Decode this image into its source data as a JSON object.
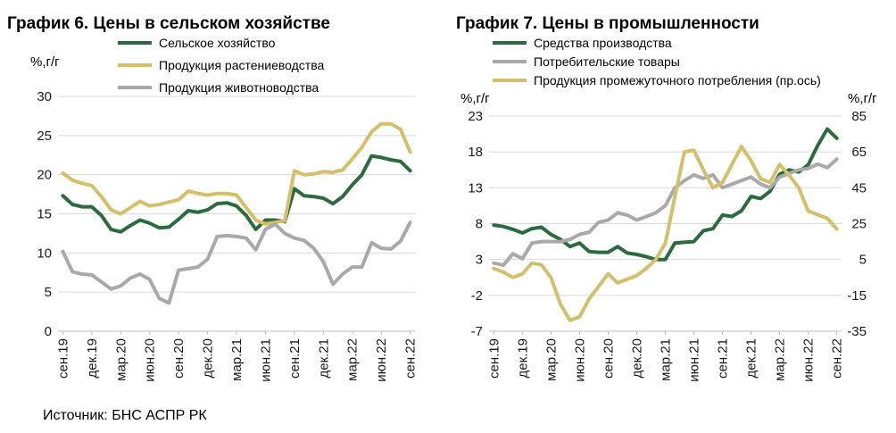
{
  "source": "Источник: БНС АСПР РК",
  "chart_data": [
    {
      "type": "line",
      "title": "График 6. Цены в сельском хозяйстве",
      "ylabel": "%,г/г",
      "ylim": [
        0,
        30
      ],
      "yticks": [
        0,
        5,
        10,
        15,
        20,
        25,
        30
      ],
      "grid": true,
      "legend": "top",
      "categories": [
        "сен.19",
        "окт.19",
        "ноя.19",
        "дек.19",
        "янв.20",
        "фев.20",
        "мар.20",
        "апр.20",
        "май.20",
        "июн.20",
        "июл.20",
        "авг.20",
        "сен.20",
        "окт.20",
        "ноя.20",
        "дек.20",
        "янв.21",
        "фев.21",
        "мар.21",
        "апр.21",
        "май.21",
        "июн.21",
        "июл.21",
        "авг.21",
        "сен.21",
        "окт.21",
        "ноя.21",
        "дек.21",
        "янв.22",
        "фев.22",
        "мар.22",
        "апр.22",
        "май.22",
        "июн.22",
        "июл.22",
        "авг.22",
        "сен.22"
      ],
      "xtick_labels": [
        "сен.19",
        "дек.19",
        "мар.20",
        "июн.20",
        "сен.20",
        "дек.20",
        "мар.21",
        "июн.21",
        "сен.21",
        "дек.21",
        "мар.22",
        "июн.22",
        "сен.22"
      ],
      "series": [
        {
          "name": "Сельское хозяйство",
          "color": "#2c6b3f",
          "values": [
            17.3,
            16.2,
            15.9,
            15.9,
            14.8,
            13.0,
            12.7,
            13.5,
            14.2,
            13.8,
            13.2,
            13.3,
            14.3,
            15.4,
            15.2,
            15.5,
            16.3,
            16.4,
            16.0,
            14.8,
            13.0,
            14.2,
            14.2,
            14.0,
            18.2,
            17.3,
            17.2,
            17.0,
            16.3,
            17.2,
            18.7,
            20.0,
            22.4,
            22.2,
            21.9,
            21.7,
            20.5
          ]
        },
        {
          "name": "Продукция растениеводства",
          "color": "#d4bf6a",
          "values": [
            20.2,
            19.3,
            18.9,
            18.6,
            17.2,
            15.5,
            15.0,
            15.8,
            16.6,
            16.0,
            16.2,
            16.5,
            16.8,
            17.9,
            17.6,
            17.4,
            17.6,
            17.6,
            17.4,
            15.8,
            14.2,
            13.7,
            13.9,
            14.1,
            20.5,
            20.0,
            20.1,
            20.4,
            20.3,
            20.6,
            22.0,
            23.5,
            25.5,
            26.5,
            26.5,
            25.8,
            22.9
          ]
        },
        {
          "name": "Продукция животноводства",
          "color": "#a9a9a9",
          "values": [
            10.2,
            7.6,
            7.3,
            7.2,
            6.3,
            5.4,
            5.8,
            6.8,
            7.3,
            6.6,
            4.2,
            3.6,
            7.8,
            8.0,
            8.2,
            9.2,
            12.1,
            12.2,
            12.1,
            11.9,
            10.4,
            13.0,
            13.7,
            12.5,
            11.9,
            11.6,
            10.6,
            8.9,
            6.0,
            7.3,
            8.2,
            8.2,
            11.3,
            10.6,
            10.5,
            11.5,
            13.9
          ]
        }
      ]
    },
    {
      "type": "line",
      "title": "График 7. Цены в промышленности",
      "ylabel": "%,г/г",
      "y2label": "%,г/г",
      "ylim": [
        -7,
        23
      ],
      "y2lim": [
        -35,
        85
      ],
      "yticks": [
        -7,
        -2,
        3,
        8,
        13,
        18,
        23
      ],
      "y2ticks": [
        -35,
        -15,
        5,
        25,
        45,
        65,
        85
      ],
      "grid": true,
      "legend": "top",
      "categories": [
        "сен.19",
        "окт.19",
        "ноя.19",
        "дек.19",
        "янв.20",
        "фев.20",
        "мар.20",
        "апр.20",
        "май.20",
        "июн.20",
        "июл.20",
        "авг.20",
        "сен.20",
        "окт.20",
        "ноя.20",
        "дек.20",
        "янв.21",
        "фев.21",
        "мар.21",
        "апр.21",
        "май.21",
        "июн.21",
        "июл.21",
        "авг.21",
        "сен.21",
        "окт.21",
        "ноя.21",
        "дек.21",
        "янв.22",
        "фев.22",
        "мар.22",
        "апр.22",
        "май.22",
        "июн.22",
        "июл.22",
        "авг.22",
        "сен.22"
      ],
      "xtick_labels": [
        "сен.19",
        "дек.19",
        "мар.20",
        "июн.20",
        "сен.20",
        "дек.20",
        "мар.21",
        "июн.21",
        "сен.21",
        "дек.21",
        "мар.22",
        "июн.22",
        "сен.22"
      ],
      "series": [
        {
          "name": "Средства производства",
          "color": "#2c6b3f",
          "axis": "left",
          "values": [
            7.8,
            7.6,
            7.2,
            6.7,
            7.3,
            7.5,
            6.5,
            5.8,
            4.8,
            5.3,
            4.1,
            4.0,
            4.0,
            4.8,
            3.9,
            3.7,
            3.4,
            3.0,
            3.0,
            5.3,
            5.4,
            5.5,
            7.0,
            7.3,
            9.2,
            9.0,
            9.8,
            11.8,
            11.5,
            12.5,
            14.9,
            15.5,
            15.2,
            16.2,
            18.9,
            21.2,
            19.9
          ]
        },
        {
          "name": "Потребительские товары",
          "color": "#a9a9a9",
          "axis": "left",
          "values": [
            2.5,
            2.2,
            3.8,
            3.1,
            5.3,
            5.5,
            5.5,
            5.5,
            5.8,
            6.5,
            6.8,
            8.2,
            8.5,
            9.5,
            9.2,
            8.5,
            9.0,
            9.5,
            10.5,
            13.0,
            14.0,
            14.8,
            14.3,
            14.8,
            13.0,
            13.5,
            14.0,
            14.5,
            13.5,
            13.0,
            14.5,
            15.0,
            15.5,
            15.7,
            16.3,
            15.8,
            17.0
          ]
        },
        {
          "name": "Продукция промежуточного потребления (пр.ось)",
          "color": "#d4bf6a",
          "axis": "right",
          "values": [
            0,
            -2,
            -5,
            -3,
            3,
            2,
            -5,
            -20,
            -29,
            -27,
            -17,
            -10,
            -3,
            -8,
            -6,
            -4,
            0,
            5,
            14,
            40,
            65,
            66,
            55,
            45,
            48,
            58,
            68,
            60,
            50,
            48,
            58,
            52,
            45,
            32,
            30,
            28,
            22
          ]
        }
      ]
    }
  ]
}
